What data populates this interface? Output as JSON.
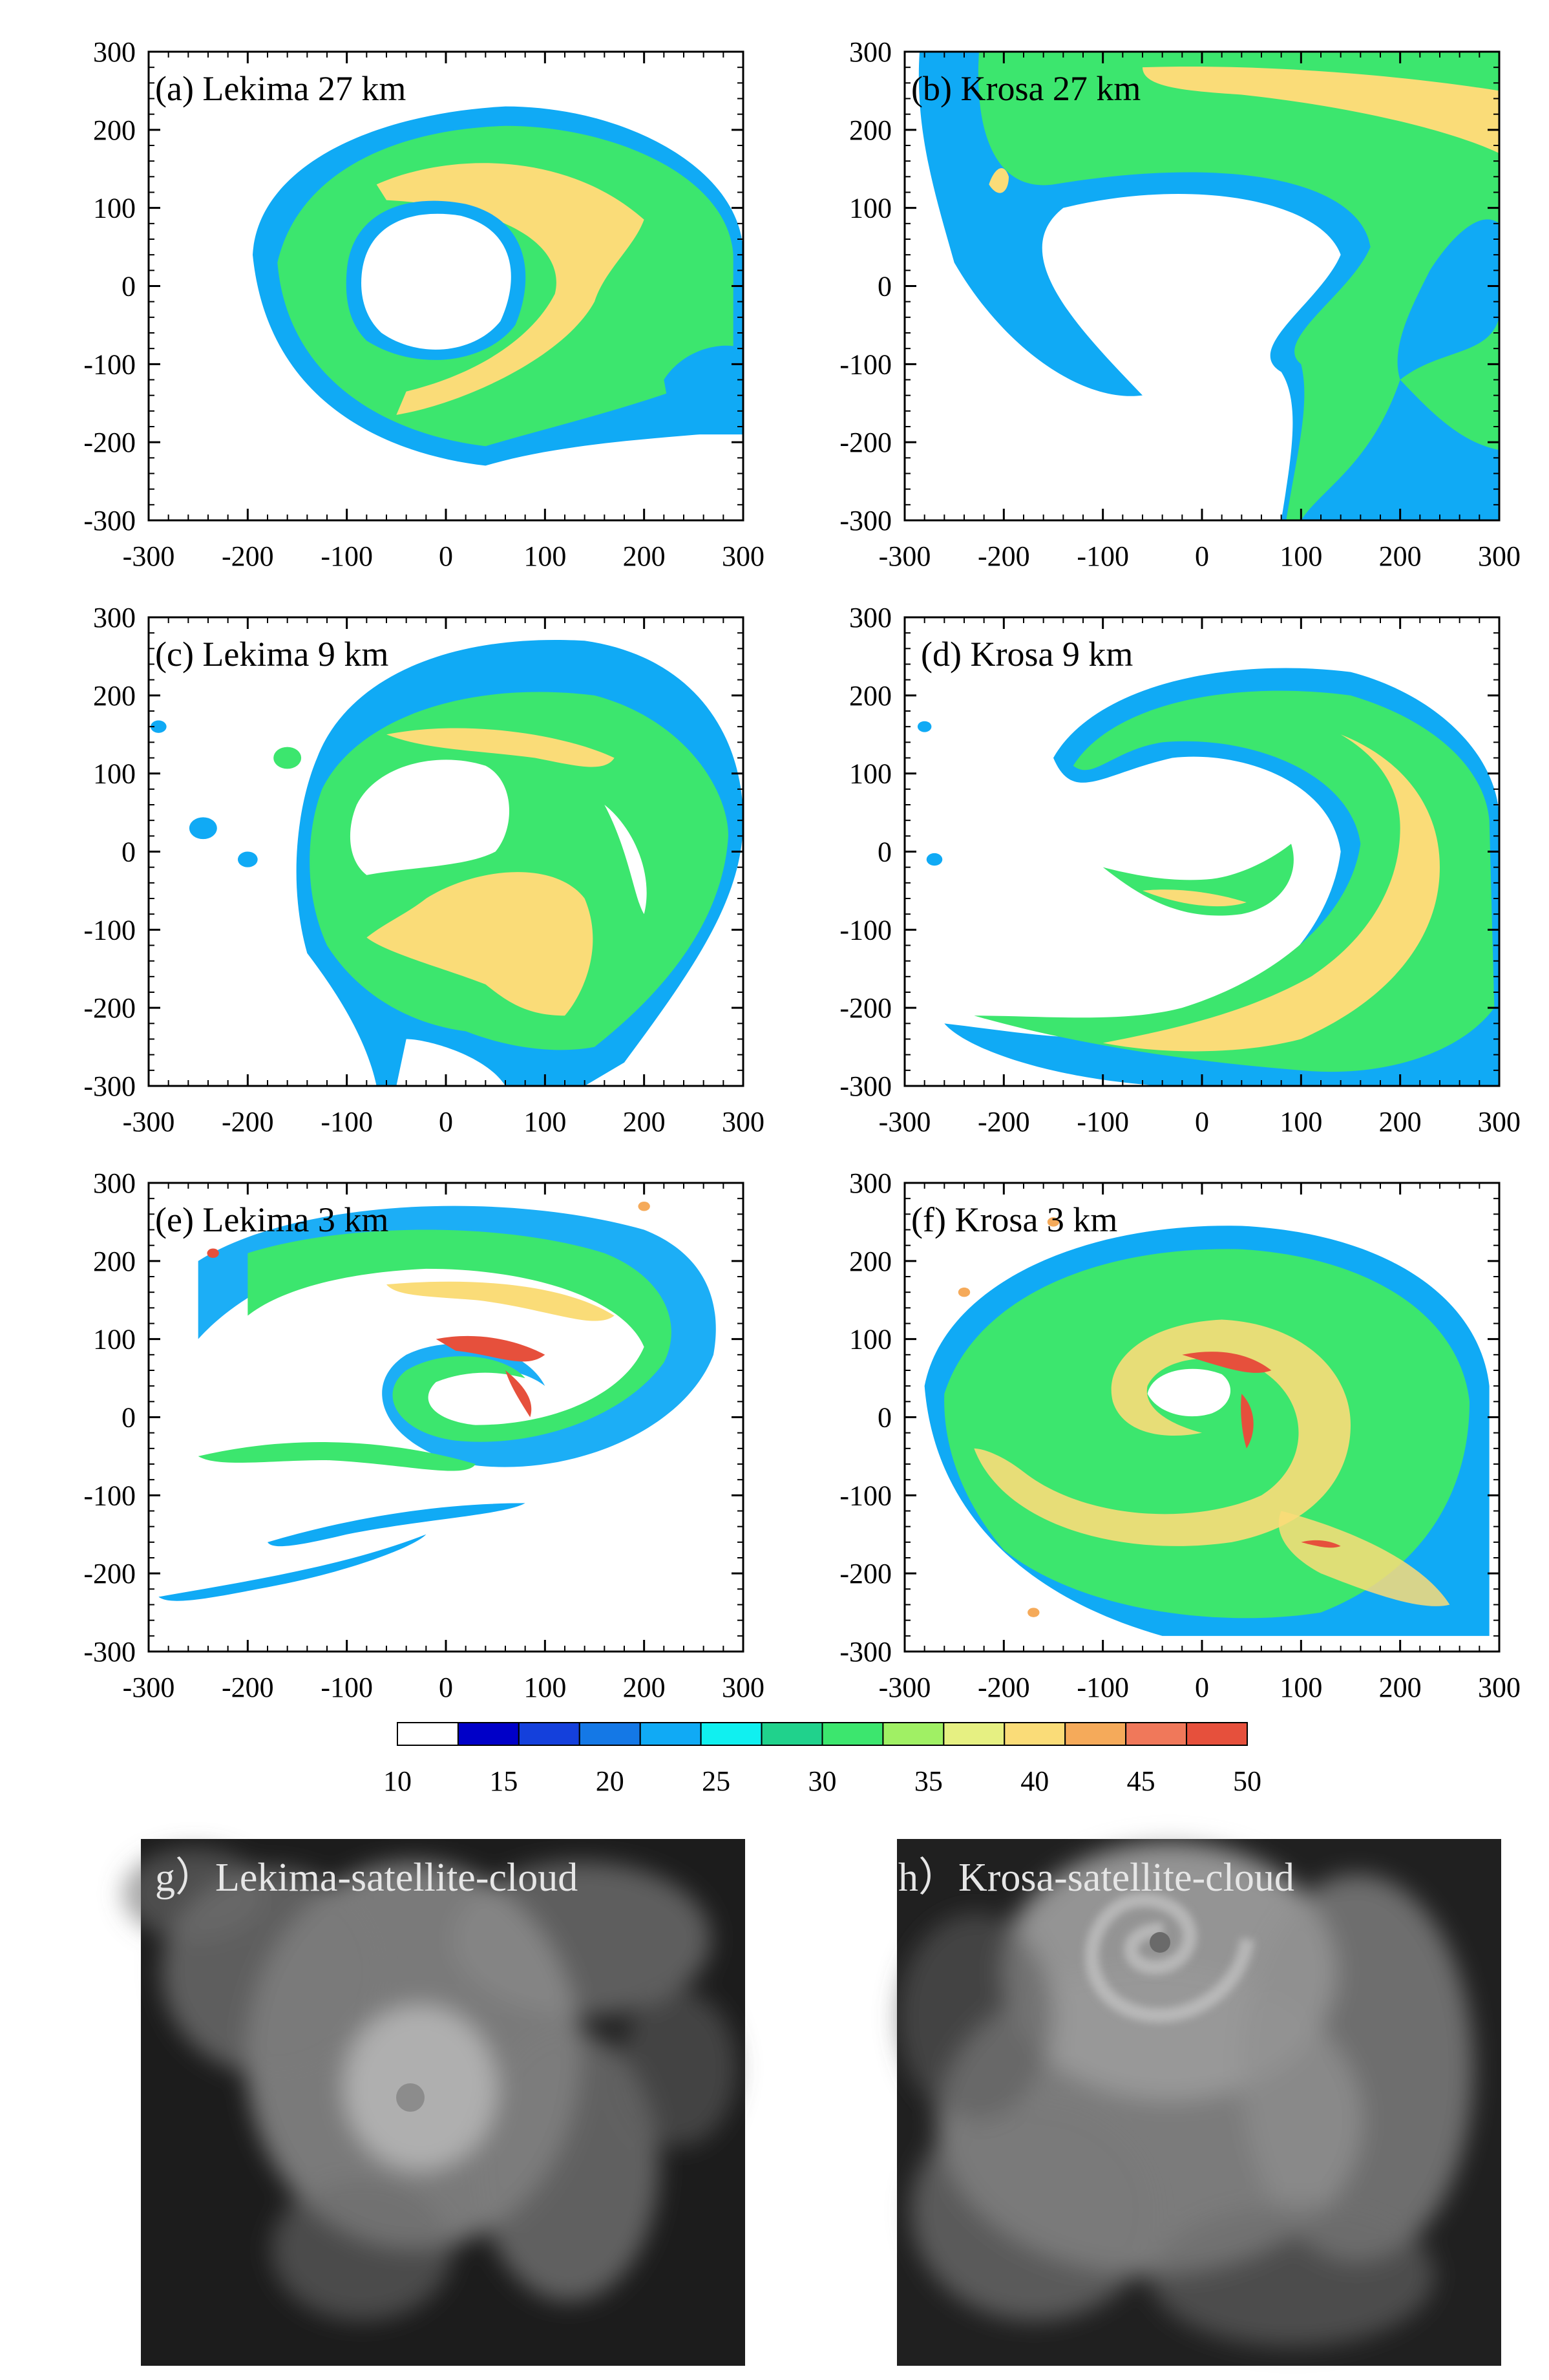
{
  "colors": {
    "levels": [
      "#ffffff",
      "#0000c8",
      "#1440dc",
      "#1478e6",
      "#10aaf5",
      "#10f0f0",
      "#20d28c",
      "#3ce66e",
      "#a0f064",
      "#e6f082",
      "#fadc78",
      "#f5aa5a",
      "#f0785a",
      "#e6503c"
    ],
    "fill_blue": "#10aaf5",
    "fill_green": "#3ce66e",
    "fill_yellow": "#fadc78",
    "fill_red": "#e6503c",
    "fill_orange": "#f5aa5a",
    "frame": "#000000"
  },
  "chart_data": [
    {
      "id": "a",
      "type": "heatmap",
      "title": "(a) Lekima 27 km",
      "xlim": [
        -300,
        300
      ],
      "ylim": [
        -300,
        300
      ],
      "xticks": [
        -300,
        -200,
        -100,
        0,
        100,
        200,
        300
      ],
      "yticks": [
        -300,
        -200,
        -100,
        0,
        100,
        200,
        300
      ]
    },
    {
      "id": "b",
      "type": "heatmap",
      "title": "(b) Krosa 27 km",
      "xlim": [
        -300,
        300
      ],
      "ylim": [
        -300,
        300
      ],
      "xticks": [
        -300,
        -200,
        -100,
        0,
        100,
        200,
        300
      ],
      "yticks": [
        -300,
        -200,
        -100,
        0,
        100,
        200,
        300
      ]
    },
    {
      "id": "c",
      "type": "heatmap",
      "title": "(c) Lekima 9 km",
      "xlim": [
        -300,
        300
      ],
      "ylim": [
        -300,
        300
      ],
      "xticks": [
        -300,
        -200,
        -100,
        0,
        100,
        200,
        300
      ],
      "yticks": [
        -300,
        -200,
        -100,
        0,
        100,
        200,
        300
      ]
    },
    {
      "id": "d",
      "type": "heatmap",
      "title": "(d) Krosa 9 km",
      "xlim": [
        -300,
        300
      ],
      "ylim": [
        -300,
        300
      ],
      "xticks": [
        -300,
        -200,
        -100,
        0,
        100,
        200,
        300
      ],
      "yticks": [
        -300,
        -200,
        -100,
        0,
        100,
        200,
        300
      ]
    },
    {
      "id": "e",
      "type": "heatmap",
      "title": "(e) Lekima 3 km",
      "xlim": [
        -300,
        300
      ],
      "ylim": [
        -300,
        300
      ],
      "xticks": [
        -300,
        -200,
        -100,
        0,
        100,
        200,
        300
      ],
      "yticks": [
        -300,
        -200,
        -100,
        0,
        100,
        200,
        300
      ]
    },
    {
      "id": "f",
      "type": "heatmap",
      "title": "(f) Krosa 3 km",
      "xlim": [
        -300,
        300
      ],
      "ylim": [
        -300,
        300
      ],
      "xticks": [
        -300,
        -200,
        -100,
        0,
        100,
        200,
        300
      ],
      "yticks": [
        -300,
        -200,
        -100,
        0,
        100,
        200,
        300
      ]
    }
  ],
  "colorbar": {
    "ticks": [
      10,
      15,
      20,
      25,
      30,
      35,
      40,
      45,
      50
    ]
  },
  "satellite": [
    {
      "id": "g",
      "caption": "g）Lekima-satellite-cloud"
    },
    {
      "id": "h",
      "caption": "h）Krosa-satellite-cloud"
    }
  ]
}
